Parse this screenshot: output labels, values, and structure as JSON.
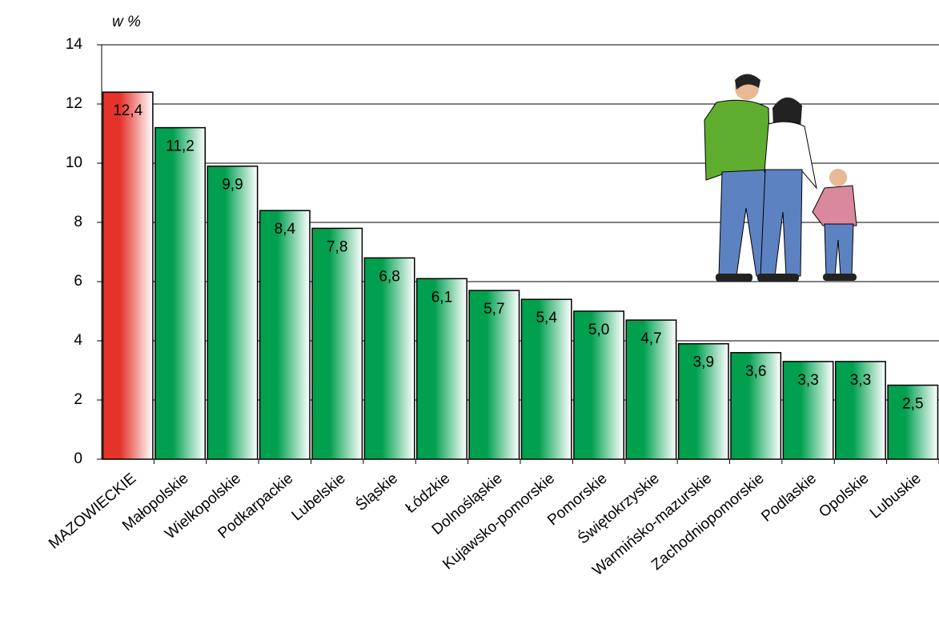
{
  "chart_data": {
    "type": "bar",
    "y_label": "w %",
    "categories": [
      "MAZOWIECKIE",
      "Małopolskie",
      "Wielkopolskie",
      "Podkarpackie",
      "Lubelskie",
      "Śląskie",
      "Łódzkie",
      "Dolnośląskie",
      "Kujawsko-pomorskie",
      "Pomorskie",
      "Świętokrzyskie",
      "Warmińsko-mazurskie",
      "Zachodniopomorskie",
      "Podlaskie",
      "Opolskie",
      "Lubuskie"
    ],
    "values": [
      12.4,
      11.2,
      9.9,
      8.4,
      7.8,
      6.8,
      6.1,
      5.7,
      5.4,
      5.0,
      4.7,
      3.9,
      3.6,
      3.3,
      3.3,
      2.5
    ],
    "value_labels": [
      "12,4",
      "11,2",
      "9,9",
      "8,4",
      "7,8",
      "6,8",
      "6,1",
      "5,7",
      "5,4",
      "5,0",
      "4,7",
      "3,9",
      "3,6",
      "3,3",
      "3,3",
      "2,5"
    ],
    "colors": [
      "#e4332b",
      "#00a04f",
      "#00a04f",
      "#00a04f",
      "#00a04f",
      "#00a04f",
      "#00a04f",
      "#00a04f",
      "#00a04f",
      "#00a04f",
      "#00a04f",
      "#00a04f",
      "#00a04f",
      "#00a04f",
      "#00a04f",
      "#00a04f"
    ],
    "ylim": [
      0,
      14
    ],
    "yticks": [
      0,
      2,
      4,
      6,
      8,
      10,
      12,
      14
    ],
    "grid": true
  }
}
